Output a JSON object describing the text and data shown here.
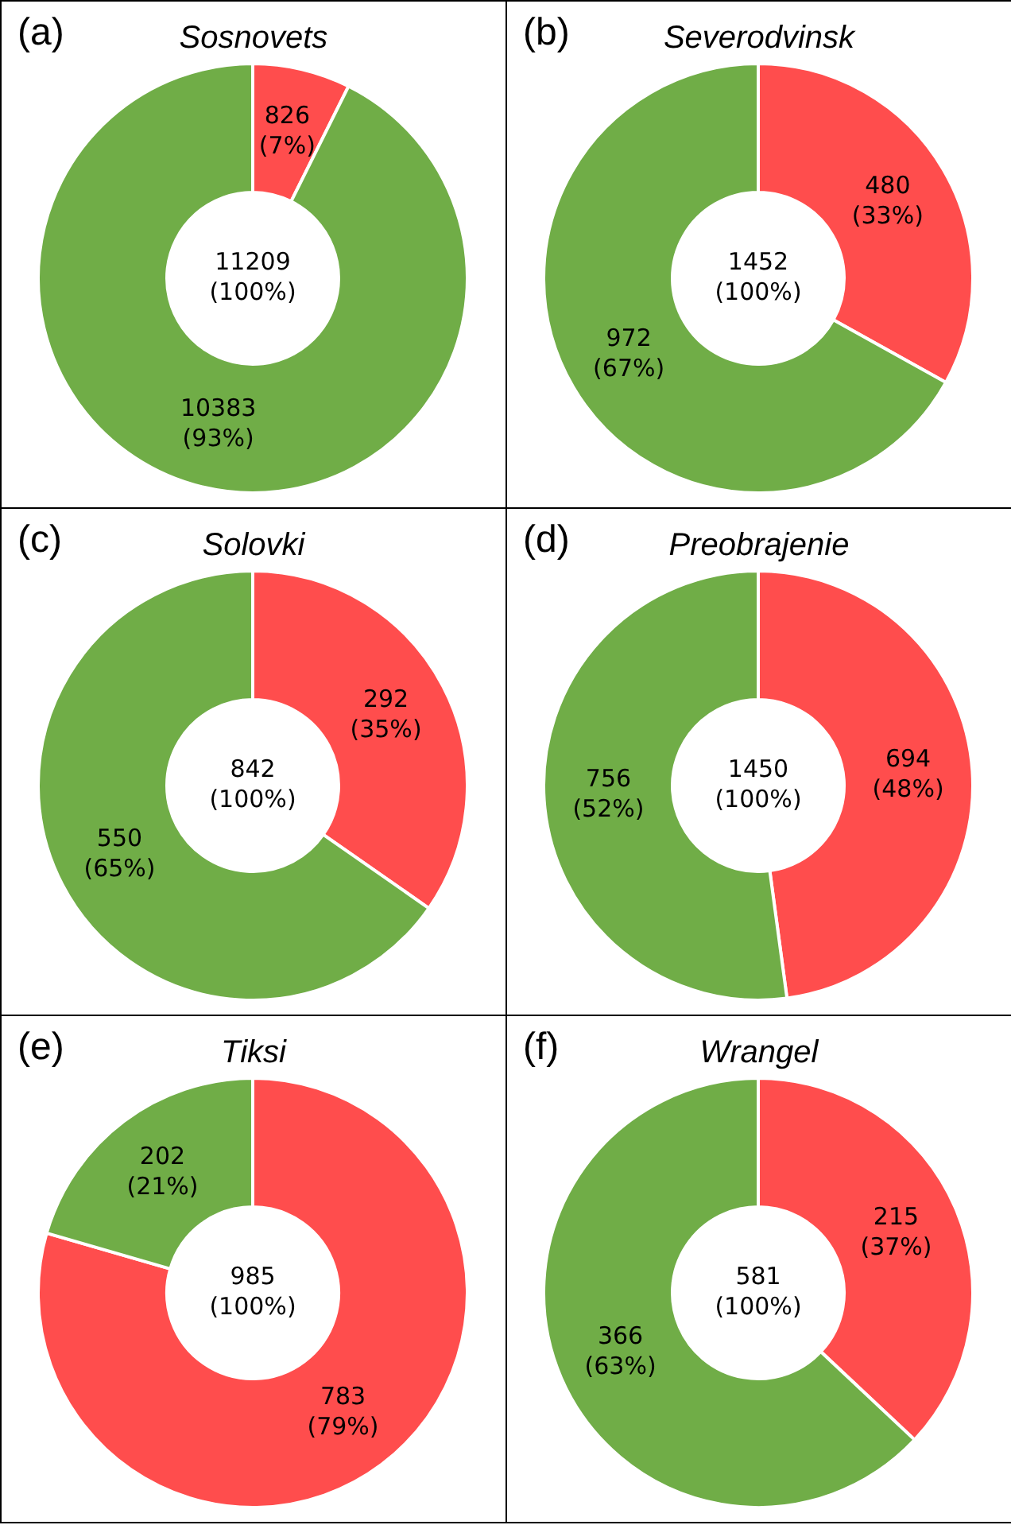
{
  "chart_data": [
    {
      "type": "donut",
      "title": "Sosnovets",
      "annotations": [
        "(a)",
        "11209\n(100%)"
      ],
      "categories": [
        null,
        null
      ],
      "values": [
        826,
        10383
      ],
      "colors": [
        "#ff4d4d",
        "#70ad47"
      ],
      "value_labels": [
        "826\n(7%)",
        "10383\n(93%)"
      ]
    },
    {
      "type": "donut",
      "title": "Severodvinsk",
      "annotations": [
        "(b)",
        "1452\n(100%)"
      ],
      "categories": [
        null,
        null
      ],
      "values": [
        480,
        972
      ],
      "colors": [
        "#ff4d4d",
        "#70ad47"
      ],
      "value_labels": [
        "480\n(33%)",
        "972\n(67%)"
      ]
    },
    {
      "type": "donut",
      "title": "Solovki",
      "annotations": [
        "(c)",
        "842\n(100%)"
      ],
      "categories": [
        null,
        null
      ],
      "values": [
        292,
        550
      ],
      "colors": [
        "#ff4d4d",
        "#70ad47"
      ],
      "value_labels": [
        "292\n(35%)",
        "550\n(65%)"
      ]
    },
    {
      "type": "donut",
      "title": "Preobrajenie",
      "annotations": [
        "(d)",
        "1450\n(100%)"
      ],
      "categories": [
        null,
        null
      ],
      "values": [
        694,
        756
      ],
      "colors": [
        "#ff4d4d",
        "#70ad47"
      ],
      "value_labels": [
        "694\n(48%)",
        "756\n(52%)"
      ]
    },
    {
      "type": "donut",
      "title": "Tiksi",
      "annotations": [
        "(e)",
        "985\n(100%)"
      ],
      "categories": [
        null,
        null
      ],
      "values": [
        783,
        202
      ],
      "colors": [
        "#ff4d4d",
        "#70ad47"
      ],
      "value_labels": [
        "783\n(79%)",
        "202\n(21%)"
      ]
    },
    {
      "type": "donut",
      "title": "Wrangel",
      "annotations": [
        "(f)",
        "581\n(100%)"
      ],
      "categories": [
        null,
        null
      ],
      "values": [
        215,
        366
      ],
      "colors": [
        "#ff4d4d",
        "#70ad47"
      ],
      "value_labels": [
        "215\n(37%)",
        "366\n(63%)"
      ]
    }
  ]
}
